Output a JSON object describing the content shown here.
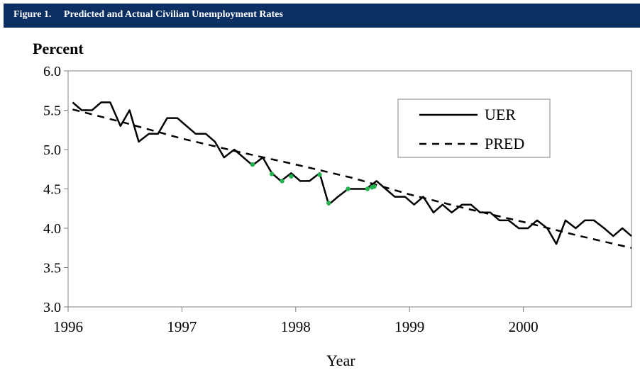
{
  "figure": {
    "number": "Figure 1.",
    "title": "Predicted and Actual Civilian Unemployment Rates"
  },
  "colors": {
    "title_bar": "#0b2e63",
    "highlight": "#22b14c"
  },
  "chart_data": {
    "type": "line",
    "title": "Predicted and Actual Civilian Unemployment Rates",
    "ylabel": "Percent",
    "xlabel": "Year",
    "ylim": [
      3.0,
      6.0
    ],
    "yticks": [
      "3.0",
      "3.5",
      "4.0",
      "4.5",
      "5.0",
      "5.5",
      "6.0"
    ],
    "xlim": [
      1996,
      2000.95
    ],
    "xticks": [
      "1996",
      "1997",
      "1998",
      "1999",
      "2000"
    ],
    "grid": false,
    "legend_position": "top-right",
    "series": [
      {
        "name": "UER",
        "style": "solid",
        "x": [
          1996.04,
          1996.12,
          1996.21,
          1996.29,
          1996.37,
          1996.46,
          1996.54,
          1996.62,
          1996.71,
          1996.79,
          1996.87,
          1996.96,
          1997.04,
          1997.12,
          1997.21,
          1997.29,
          1997.37,
          1997.46,
          1997.54,
          1997.62,
          1997.71,
          1997.79,
          1997.87,
          1997.96,
          1998.04,
          1998.12,
          1998.21,
          1998.29,
          1998.37,
          1998.46,
          1998.54,
          1998.62,
          1998.71,
          1998.79,
          1998.87,
          1998.96,
          1999.04,
          1999.12,
          1999.21,
          1999.29,
          1999.37,
          1999.46,
          1999.54,
          1999.62,
          1999.71,
          1999.79,
          1999.87,
          1999.96,
          2000.04,
          2000.12,
          2000.21,
          2000.29,
          2000.37,
          2000.46,
          2000.54,
          2000.62,
          2000.71,
          2000.79,
          2000.87,
          2000.95
        ],
        "values": [
          5.6,
          5.5,
          5.5,
          5.6,
          5.6,
          5.3,
          5.5,
          5.1,
          5.2,
          5.2,
          5.4,
          5.4,
          5.3,
          5.2,
          5.2,
          5.1,
          4.9,
          5.0,
          4.9,
          4.8,
          4.9,
          4.7,
          4.6,
          4.7,
          4.6,
          4.6,
          4.7,
          4.3,
          4.4,
          4.5,
          4.5,
          4.5,
          4.6,
          4.5,
          4.4,
          4.4,
          4.3,
          4.4,
          4.2,
          4.3,
          4.2,
          4.3,
          4.3,
          4.2,
          4.2,
          4.1,
          4.1,
          4.0,
          4.0,
          4.1,
          4.0,
          3.8,
          4.1,
          4.0,
          4.1,
          4.1,
          4.0,
          3.9,
          4.0,
          3.9
        ]
      },
      {
        "name": "PRED",
        "style": "dashed",
        "x": [
          1996.04,
          1996.5,
          1997.0,
          1997.5,
          1998.0,
          1998.5,
          1999.0,
          1999.5,
          2000.0,
          2000.5,
          2000.95
        ],
        "values": [
          5.51,
          5.34,
          5.14,
          4.97,
          4.81,
          4.64,
          4.43,
          4.25,
          4.08,
          3.9,
          3.75
        ]
      }
    ],
    "highlight_points": {
      "x": [
        1997.62,
        1997.79,
        1997.88,
        1997.96,
        1998.21,
        1998.29,
        1998.46,
        1998.63,
        1998.67,
        1998.69
      ],
      "values": [
        4.81,
        4.69,
        4.6,
        4.66,
        4.68,
        4.32,
        4.5,
        4.5,
        4.52,
        4.53
      ]
    }
  }
}
